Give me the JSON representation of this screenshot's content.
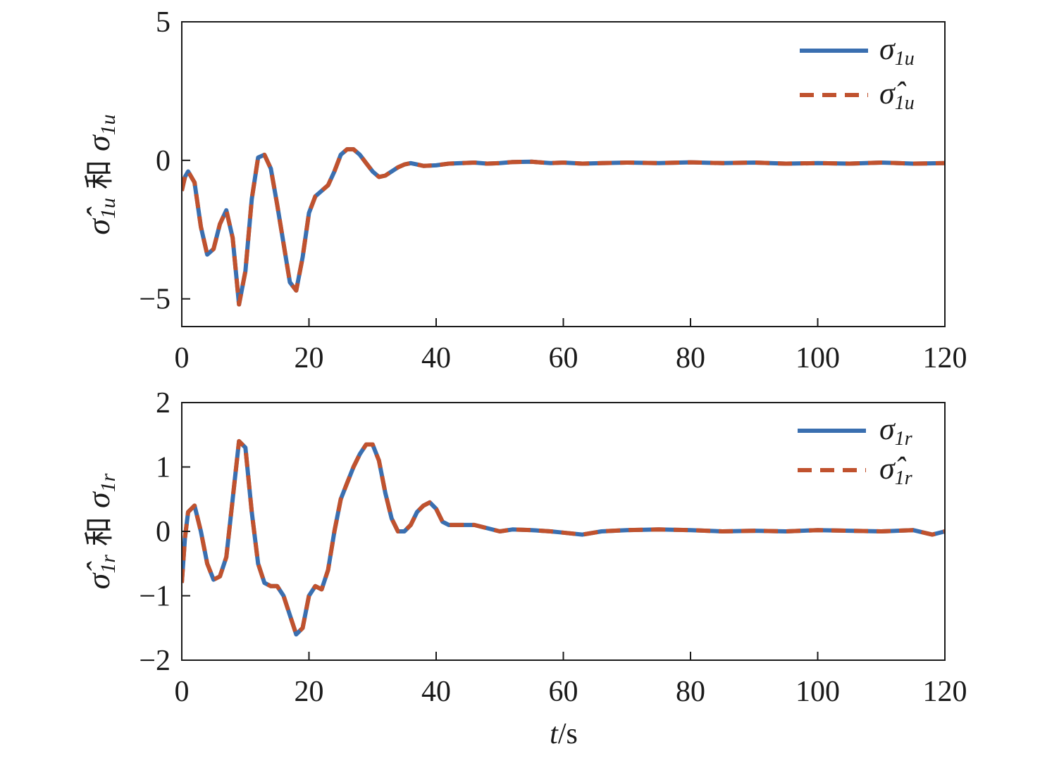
{
  "chart_data": [
    {
      "type": "line",
      "ylabel": "σ̂1u 和 σ1u",
      "ylabel_parts": {
        "hat_symbol": "σ̂",
        "hat_sub": "1u",
        "connector": "和",
        "symbol": "σ",
        "sub": "1u"
      },
      "xlabel": "",
      "xlim": [
        0,
        120
      ],
      "ylim": [
        -6,
        5
      ],
      "xticks": [
        0,
        20,
        40,
        60,
        80,
        100,
        120
      ],
      "xtick_labels": [
        "0",
        "20",
        "40",
        "60",
        "80",
        "100",
        "120"
      ],
      "yticks": [
        -5,
        0,
        5
      ],
      "ytick_labels": [
        "−5",
        "0",
        "5"
      ],
      "legend_position": "top-right",
      "series": [
        {
          "name": "σ1u",
          "name_symbol": "σ",
          "name_sub": "1u",
          "color": "#3a6fb0",
          "style": "solid",
          "x": [
            0,
            0.5,
            1,
            2,
            3,
            4,
            5,
            6,
            7,
            8,
            9,
            10,
            11,
            12,
            13,
            14,
            15,
            16,
            17,
            18,
            19,
            20,
            21,
            22,
            23,
            24,
            25,
            26,
            27,
            28,
            29,
            30,
            31,
            32,
            33,
            34,
            35,
            36,
            37,
            38,
            40,
            42,
            44,
            46,
            48,
            50,
            52,
            55,
            58,
            60,
            63,
            66,
            70,
            75,
            80,
            85,
            90,
            95,
            100,
            105,
            110,
            115,
            120
          ],
          "y": [
            -1.1,
            -0.6,
            -0.4,
            -0.8,
            -2.4,
            -3.4,
            -3.2,
            -2.3,
            -1.8,
            -2.8,
            -5.2,
            -4.0,
            -1.4,
            0.1,
            0.2,
            -0.3,
            -1.6,
            -3.0,
            -4.4,
            -4.7,
            -3.5,
            -1.9,
            -1.3,
            -1.1,
            -0.9,
            -0.4,
            0.2,
            0.4,
            0.4,
            0.2,
            -0.1,
            -0.4,
            -0.6,
            -0.55,
            -0.4,
            -0.25,
            -0.15,
            -0.1,
            -0.15,
            -0.2,
            -0.18,
            -0.12,
            -0.1,
            -0.08,
            -0.12,
            -0.1,
            -0.06,
            -0.05,
            -0.1,
            -0.08,
            -0.12,
            -0.1,
            -0.08,
            -0.1,
            -0.07,
            -0.1,
            -0.08,
            -0.12,
            -0.1,
            -0.12,
            -0.08,
            -0.12,
            -0.1
          ]
        },
        {
          "name": "σ̂1u",
          "name_symbol": "σ̂",
          "name_sub": "1u",
          "color": "#c0522e",
          "style": "dashed",
          "x": [
            0,
            0.5,
            1,
            2,
            3,
            4,
            5,
            6,
            7,
            8,
            9,
            10,
            11,
            12,
            13,
            14,
            15,
            16,
            17,
            18,
            19,
            20,
            21,
            22,
            23,
            24,
            25,
            26,
            27,
            28,
            29,
            30,
            31,
            32,
            33,
            34,
            35,
            36,
            37,
            38,
            40,
            42,
            44,
            46,
            48,
            50,
            52,
            55,
            58,
            60,
            63,
            66,
            70,
            75,
            80,
            85,
            90,
            95,
            100,
            105,
            110,
            115,
            120
          ],
          "y": [
            -1.1,
            -0.6,
            -0.4,
            -0.8,
            -2.4,
            -3.4,
            -3.2,
            -2.3,
            -1.8,
            -2.8,
            -5.2,
            -4.0,
            -1.4,
            0.1,
            0.2,
            -0.3,
            -1.6,
            -3.0,
            -4.4,
            -4.7,
            -3.5,
            -1.9,
            -1.3,
            -1.1,
            -0.9,
            -0.4,
            0.2,
            0.4,
            0.4,
            0.2,
            -0.1,
            -0.4,
            -0.6,
            -0.55,
            -0.4,
            -0.25,
            -0.15,
            -0.1,
            -0.15,
            -0.2,
            -0.18,
            -0.12,
            -0.1,
            -0.08,
            -0.12,
            -0.1,
            -0.06,
            -0.05,
            -0.1,
            -0.08,
            -0.12,
            -0.1,
            -0.08,
            -0.1,
            -0.07,
            -0.1,
            -0.08,
            -0.12,
            -0.1,
            -0.12,
            -0.08,
            -0.12,
            -0.1
          ]
        }
      ]
    },
    {
      "type": "line",
      "ylabel": "σ̂1r 和 σ1r",
      "ylabel_parts": {
        "hat_symbol": "σ̂",
        "hat_sub": "1r",
        "connector": "和",
        "symbol": "σ",
        "sub": "1r"
      },
      "xlabel": "t/s",
      "xlabel_parts": {
        "var": "t",
        "unit": "/s"
      },
      "xlim": [
        0,
        120
      ],
      "ylim": [
        -2,
        2
      ],
      "xticks": [
        0,
        20,
        40,
        60,
        80,
        100,
        120
      ],
      "xtick_labels": [
        "0",
        "20",
        "40",
        "60",
        "80",
        "100",
        "120"
      ],
      "yticks": [
        -2,
        -1,
        0,
        1,
        2
      ],
      "ytick_labels": [
        "−2",
        "−1",
        "0",
        "1",
        "2"
      ],
      "legend_position": "top-right",
      "series": [
        {
          "name": "σ1r",
          "name_symbol": "σ",
          "name_sub": "1r",
          "color": "#3a6fb0",
          "style": "solid",
          "x": [
            0,
            0.5,
            1,
            2,
            3,
            4,
            5,
            6,
            7,
            8,
            9,
            10,
            11,
            12,
            13,
            14,
            15,
            16,
            17,
            18,
            19,
            20,
            21,
            22,
            23,
            24,
            25,
            26,
            27,
            28,
            29,
            30,
            31,
            32,
            33,
            34,
            35,
            36,
            37,
            38,
            39,
            40,
            41,
            42,
            44,
            46,
            48,
            50,
            52,
            55,
            58,
            60,
            63,
            66,
            70,
            75,
            80,
            85,
            90,
            95,
            100,
            105,
            110,
            115,
            118,
            120
          ],
          "y": [
            -0.8,
            -0.1,
            0.3,
            0.4,
            0.0,
            -0.5,
            -0.75,
            -0.7,
            -0.4,
            0.5,
            1.4,
            1.3,
            0.3,
            -0.5,
            -0.8,
            -0.85,
            -0.85,
            -1.0,
            -1.3,
            -1.6,
            -1.5,
            -1.0,
            -0.85,
            -0.9,
            -0.6,
            0.0,
            0.5,
            0.75,
            1.0,
            1.2,
            1.35,
            1.35,
            1.1,
            0.6,
            0.2,
            0.0,
            0.0,
            0.1,
            0.3,
            0.4,
            0.45,
            0.35,
            0.15,
            0.1,
            0.1,
            0.1,
            0.05,
            0.0,
            0.03,
            0.02,
            0.0,
            -0.02,
            -0.05,
            0.0,
            0.02,
            0.03,
            0.02,
            0.0,
            0.01,
            0.0,
            0.02,
            0.01,
            0.0,
            0.02,
            -0.05,
            0.0
          ]
        },
        {
          "name": "σ̂1r",
          "name_symbol": "σ̂",
          "name_sub": "1r",
          "color": "#c0522e",
          "style": "dashed",
          "x": [
            0,
            0.5,
            1,
            2,
            3,
            4,
            5,
            6,
            7,
            8,
            9,
            10,
            11,
            12,
            13,
            14,
            15,
            16,
            17,
            18,
            19,
            20,
            21,
            22,
            23,
            24,
            25,
            26,
            27,
            28,
            29,
            30,
            31,
            32,
            33,
            34,
            35,
            36,
            37,
            38,
            39,
            40,
            41,
            42,
            44,
            46,
            48,
            50,
            52,
            55,
            58,
            60,
            63,
            66,
            70,
            75,
            80,
            85,
            90,
            95,
            100,
            105,
            110,
            115,
            118,
            120
          ],
          "y": [
            -0.8,
            -0.1,
            0.3,
            0.4,
            0.0,
            -0.5,
            -0.75,
            -0.7,
            -0.4,
            0.5,
            1.4,
            1.3,
            0.3,
            -0.5,
            -0.8,
            -0.85,
            -0.85,
            -1.0,
            -1.3,
            -1.6,
            -1.5,
            -1.0,
            -0.85,
            -0.9,
            -0.6,
            0.0,
            0.5,
            0.75,
            1.0,
            1.2,
            1.35,
            1.35,
            1.1,
            0.6,
            0.2,
            0.0,
            0.0,
            0.1,
            0.3,
            0.4,
            0.45,
            0.35,
            0.15,
            0.1,
            0.1,
            0.1,
            0.05,
            0.0,
            0.03,
            0.02,
            0.0,
            -0.02,
            -0.05,
            0.0,
            0.02,
            0.03,
            0.02,
            0.0,
            0.01,
            0.0,
            0.02,
            0.01,
            0.0,
            0.02,
            -0.05,
            0.0
          ]
        }
      ]
    }
  ]
}
